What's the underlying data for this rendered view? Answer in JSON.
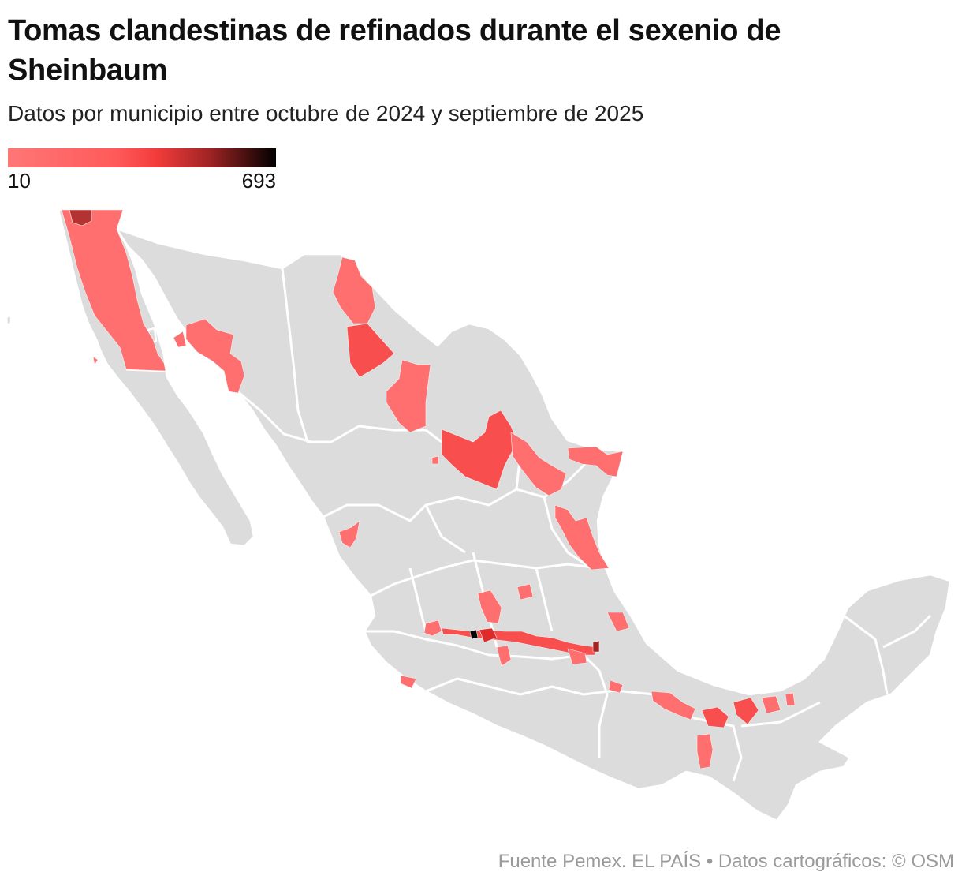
{
  "header": {
    "title": "Tomas clandestinas de refinados durante el sexenio de Sheinbaum",
    "subtitle": "Datos por municipio entre octubre de 2024 y septiembre de 2025"
  },
  "legend": {
    "min_label": "10",
    "max_label": "693",
    "min": 10,
    "max": 693,
    "colors": [
      "#ff7676",
      "#ff5a5a",
      "#f43c3c",
      "#a12424",
      "#000000"
    ]
  },
  "map": {
    "land_color": "#dcdcdc",
    "border_color": "#ffffff"
  },
  "footer": {
    "source": "Fuente Pemex. EL PAÍS  • Datos cartográficos: © OSM"
  }
}
